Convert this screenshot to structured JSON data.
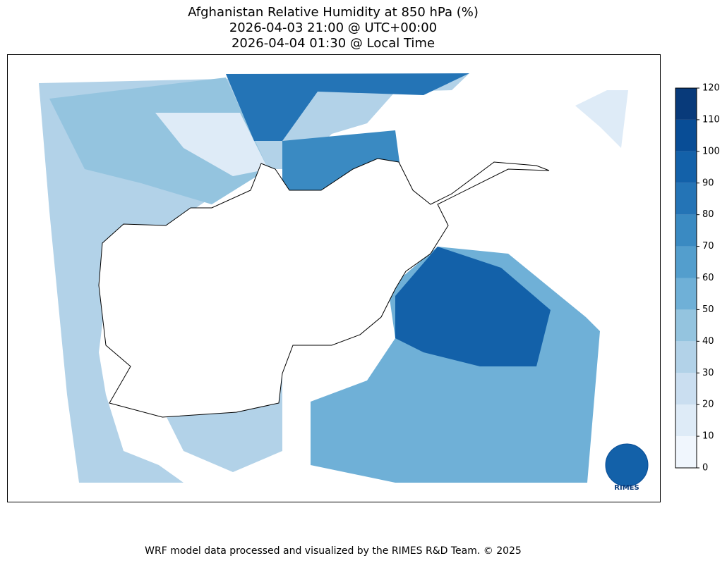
{
  "title": [
    "Afghanistan Relative Humidity at 850 hPa (%)",
    "2026-04-03 21:00 @ UTC+00:00",
    "2026-04-04 01:30 @ Local Time"
  ],
  "colorbar": {
    "ticks": [
      0,
      10,
      20,
      30,
      40,
      50,
      60,
      70,
      80,
      90,
      100,
      110,
      120
    ],
    "colors": [
      "#f0f6fd",
      "#deebf7",
      "#cadef0",
      "#b2d2e8",
      "#94c4df",
      "#6fb0d7",
      "#539ecd",
      "#3a8ac2",
      "#2474b6",
      "#1361a9",
      "#084d96",
      "#083a7a"
    ]
  },
  "logo": "RIMES",
  "footer": "WRF model data processed and visualized by the RIMES R&D Team. © 2025"
}
